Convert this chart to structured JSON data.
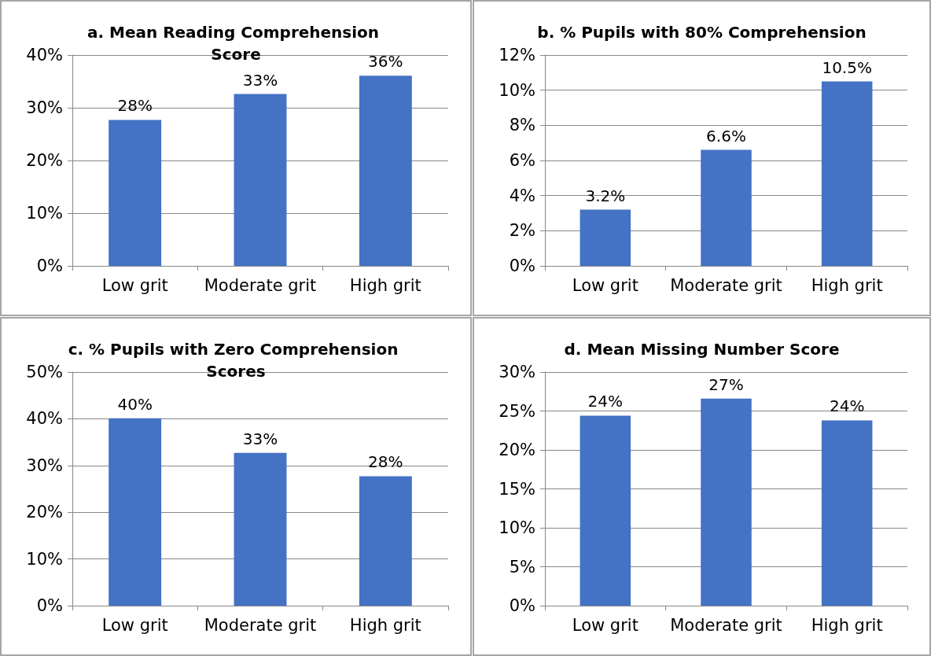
{
  "chart_data": [
    {
      "type": "bar",
      "title": "a. Mean Reading Comprehension Score",
      "categories": [
        "Low grit",
        "Moderate grit",
        "High grit"
      ],
      "values": [
        27.7,
        32.6,
        36.1
      ],
      "value_labels": [
        "28%",
        "33%",
        "36%"
      ],
      "color": "#4472c4",
      "ylim": [
        0,
        40
      ],
      "yticks": [
        {
          "value": 0,
          "label": "0%"
        },
        {
          "value": 10,
          "label": "10%"
        },
        {
          "value": 20,
          "label": "20%"
        },
        {
          "value": 30,
          "label": "30%"
        },
        {
          "value": 40,
          "label": "40%"
        }
      ],
      "grid": "y"
    },
    {
      "type": "bar",
      "title": "b. % Pupils with 80% Comprehension",
      "categories": [
        "Low grit",
        "Moderate grit",
        "High grit"
      ],
      "values": [
        3.2,
        6.6,
        10.5
      ],
      "value_labels": [
        "3.2%",
        "6.6%",
        "10.5%"
      ],
      "color": "#4472c4",
      "ylim": [
        0,
        12
      ],
      "yticks": [
        {
          "value": 0,
          "label": "0%"
        },
        {
          "value": 2,
          "label": "2%"
        },
        {
          "value": 4,
          "label": "4%"
        },
        {
          "value": 6,
          "label": "6%"
        },
        {
          "value": 8,
          "label": "8%"
        },
        {
          "value": 10,
          "label": "10%"
        },
        {
          "value": 12,
          "label": "12%"
        }
      ],
      "grid": "y"
    },
    {
      "type": "bar",
      "title": "c. % Pupils with Zero Comprehension Scores",
      "categories": [
        "Low grit",
        "Moderate grit",
        "High grit"
      ],
      "values": [
        40.1,
        32.7,
        27.7
      ],
      "value_labels": [
        "40%",
        "33%",
        "28%"
      ],
      "color": "#4472c4",
      "ylim": [
        0,
        50
      ],
      "yticks": [
        {
          "value": 0,
          "label": "0%"
        },
        {
          "value": 10,
          "label": "10%"
        },
        {
          "value": 20,
          "label": "20%"
        },
        {
          "value": 30,
          "label": "30%"
        },
        {
          "value": 40,
          "label": "40%"
        },
        {
          "value": 50,
          "label": "50%"
        }
      ],
      "grid": "y"
    },
    {
      "type": "bar",
      "title": "d. Mean Missing Number Score",
      "categories": [
        "Low grit",
        "Moderate grit",
        "High grit"
      ],
      "values": [
        24.4,
        26.6,
        23.8
      ],
      "value_labels": [
        "24%",
        "27%",
        "24%"
      ],
      "color": "#4472c4",
      "ylim": [
        0,
        30
      ],
      "yticks": [
        {
          "value": 0,
          "label": "0%"
        },
        {
          "value": 5,
          "label": "5%"
        },
        {
          "value": 10,
          "label": "10%"
        },
        {
          "value": 15,
          "label": "15%"
        },
        {
          "value": 20,
          "label": "20%"
        },
        {
          "value": 25,
          "label": "25%"
        },
        {
          "value": 30,
          "label": "30%"
        }
      ],
      "grid": "y"
    }
  ]
}
